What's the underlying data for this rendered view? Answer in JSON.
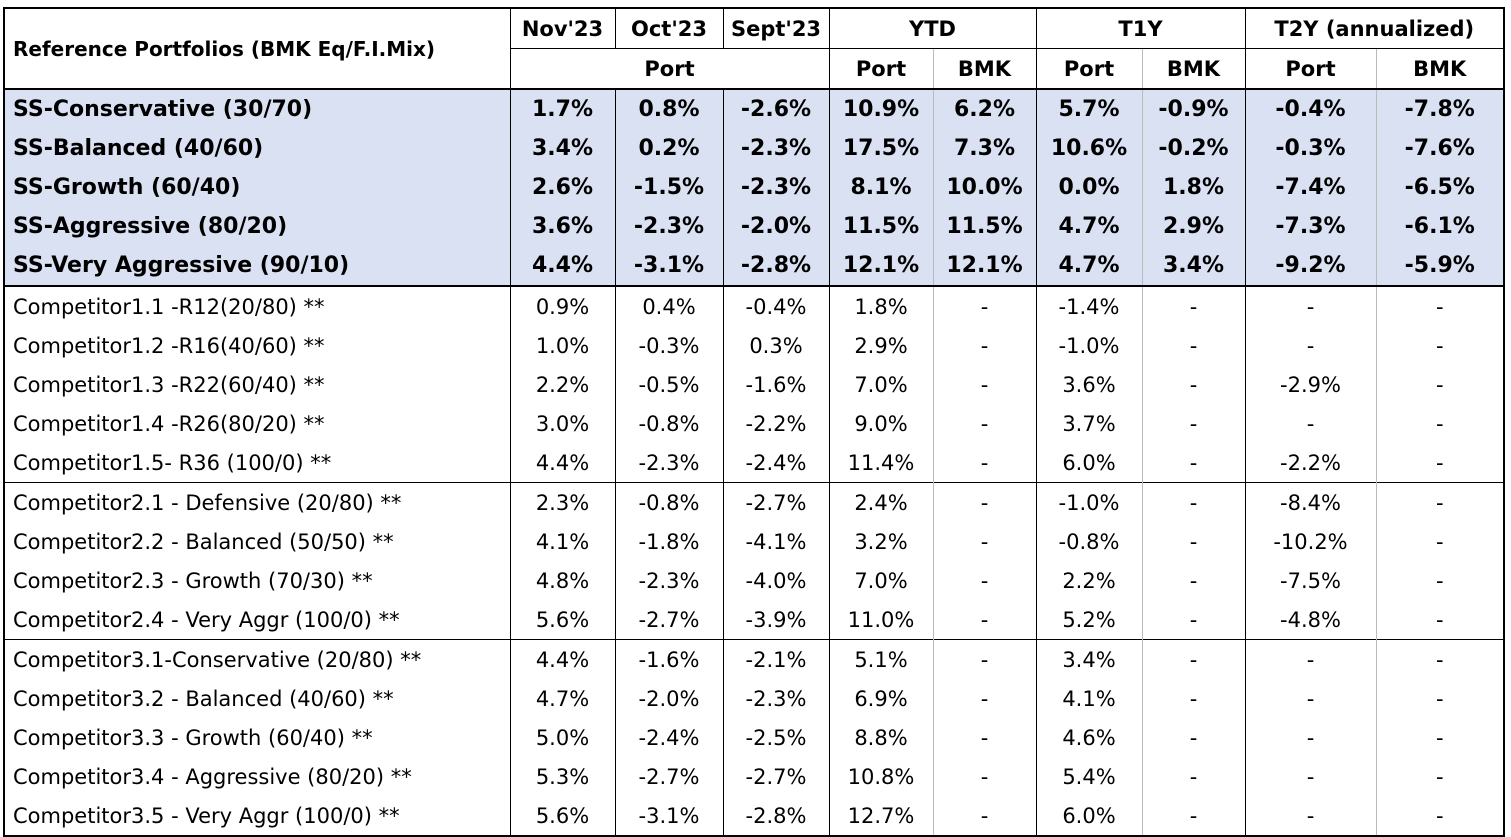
{
  "header": {
    "title": "Reference Portfolios (BMK Eq/F.I.Mix)",
    "months": [
      "Nov'23",
      "Oct'23",
      "Sept'23"
    ],
    "port_label": "Port",
    "ytd": "YTD",
    "t1y": "T1Y",
    "t2y": "T2Y (annualized)",
    "sub": {
      "port": "Port",
      "bmk": "BMK"
    }
  },
  "rows": [
    {
      "name": "SS-Conservative (30/70)",
      "cells": [
        "1.7%",
        "0.8%",
        "-2.6%",
        "10.9%",
        "6.2%",
        "5.7%",
        "-0.9%",
        "-0.4%",
        "-7.8%"
      ]
    },
    {
      "name": "SS-Balanced (40/60)",
      "cells": [
        "3.4%",
        "0.2%",
        "-2.3%",
        "17.5%",
        "7.3%",
        "10.6%",
        "-0.2%",
        "-0.3%",
        "-7.6%"
      ]
    },
    {
      "name": "SS-Growth (60/40)",
      "cells": [
        "2.6%",
        "-1.5%",
        "-2.3%",
        "8.1%",
        "10.0%",
        "0.0%",
        "1.8%",
        "-7.4%",
        "-6.5%"
      ]
    },
    {
      "name": "SS-Aggressive (80/20)",
      "cells": [
        "3.6%",
        "-2.3%",
        "-2.0%",
        "11.5%",
        "11.5%",
        "4.7%",
        "2.9%",
        "-7.3%",
        "-6.1%"
      ]
    },
    {
      "name": "SS-Very Aggressive (90/10)",
      "cells": [
        "4.4%",
        "-3.1%",
        "-2.8%",
        "12.1%",
        "12.1%",
        "4.7%",
        "3.4%",
        "-9.2%",
        "-5.9%"
      ]
    },
    {
      "name": "Competitor1.1 -R12(20/80) **",
      "cells": [
        "0.9%",
        "0.4%",
        "-0.4%",
        "1.8%",
        "-",
        "-1.4%",
        "-",
        "-",
        "-"
      ]
    },
    {
      "name": "Competitor1.2 -R16(40/60) **",
      "cells": [
        "1.0%",
        "-0.3%",
        "0.3%",
        "2.9%",
        "-",
        "-1.0%",
        "-",
        "-",
        "-"
      ]
    },
    {
      "name": "Competitor1.3 -R22(60/40) **",
      "cells": [
        "2.2%",
        "-0.5%",
        "-1.6%",
        "7.0%",
        "-",
        "3.6%",
        "-",
        "-2.9%",
        "-"
      ]
    },
    {
      "name": "Competitor1.4 -R26(80/20) **",
      "cells": [
        "3.0%",
        "-0.8%",
        "-2.2%",
        "9.0%",
        "-",
        "3.7%",
        "-",
        "-",
        "-"
      ]
    },
    {
      "name": "Competitor1.5- R36 (100/0) **",
      "cells": [
        "4.4%",
        "-2.3%",
        "-2.4%",
        "11.4%",
        "-",
        "6.0%",
        "-",
        "-2.2%",
        "-"
      ]
    },
    {
      "name": "Competitor2.1  - Defensive  (20/80) **",
      "cells": [
        "2.3%",
        "-0.8%",
        "-2.7%",
        "2.4%",
        "-",
        "-1.0%",
        "-",
        "-8.4%",
        "-"
      ]
    },
    {
      "name": "Competitor2.2  - Balanced (50/50) **",
      "cells": [
        "4.1%",
        "-1.8%",
        "-4.1%",
        "3.2%",
        "-",
        "-0.8%",
        "-",
        "-10.2%",
        "-"
      ]
    },
    {
      "name": "Competitor2.3  - Growth  (70/30) **",
      "cells": [
        "4.8%",
        "-2.3%",
        "-4.0%",
        "7.0%",
        "-",
        "2.2%",
        "-",
        "-7.5%",
        "-"
      ]
    },
    {
      "name": "Competitor2.4  - Very Aggr  (100/0) **",
      "cells": [
        "5.6%",
        "-2.7%",
        "-3.9%",
        "11.0%",
        "-",
        "5.2%",
        "-",
        "-4.8%",
        "-"
      ]
    },
    {
      "name": "Competitor3.1-Conservative (20/80) **",
      "cells": [
        "4.4%",
        "-1.6%",
        "-2.1%",
        "5.1%",
        "-",
        "3.4%",
        "-",
        "-",
        "-"
      ]
    },
    {
      "name": "Competitor3.2 - Balanced  (40/60) **",
      "cells": [
        "4.7%",
        "-2.0%",
        "-2.3%",
        "6.9%",
        "-",
        "4.1%",
        "-",
        "-",
        "-"
      ]
    },
    {
      "name": "Competitor3.3 - Growth  (60/40) **",
      "cells": [
        "5.0%",
        "-2.4%",
        "-2.5%",
        "8.8%",
        "-",
        "4.6%",
        "-",
        "-",
        "-"
      ]
    },
    {
      "name": "Competitor3.4 - Aggressive  (80/20) **",
      "cells": [
        "5.3%",
        "-2.7%",
        "-2.7%",
        "10.8%",
        "-",
        "5.4%",
        "-",
        "-",
        "-"
      ]
    },
    {
      "name": "Competitor3.5  - Very Aggr (100/0) **",
      "cells": [
        "5.6%",
        "-3.1%",
        "-2.8%",
        "12.7%",
        "-",
        "6.0%",
        "-",
        "-",
        "-"
      ]
    }
  ]
}
